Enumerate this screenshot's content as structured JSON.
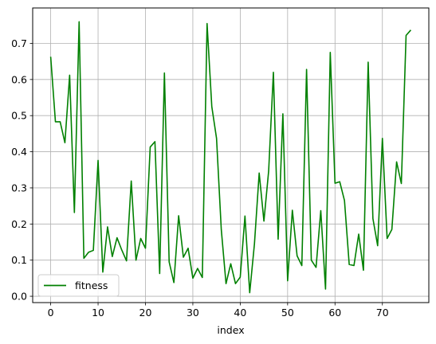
{
  "chart_data": {
    "type": "line",
    "xlabel": "index",
    "ylabel": "",
    "title": "",
    "xlim": [
      -3.8,
      79.8
    ],
    "ylim": [
      -0.0175,
      0.798
    ],
    "xticks": [
      0,
      10,
      20,
      30,
      40,
      50,
      60,
      70
    ],
    "yticks": [
      0.0,
      0.1,
      0.2,
      0.3,
      0.4,
      0.5,
      0.6,
      0.7
    ],
    "yticklabels": [
      "0.0",
      "0.1",
      "0.2",
      "0.3",
      "0.4",
      "0.5",
      "0.6",
      "0.7"
    ],
    "grid": true,
    "legend": {
      "placement": "lower-left"
    },
    "series": [
      {
        "name": "fitness",
        "color": "#008000",
        "x": [
          0,
          1,
          2,
          3,
          4,
          5,
          6,
          7,
          8,
          9,
          10,
          11,
          12,
          13,
          14,
          15,
          16,
          17,
          18,
          19,
          20,
          21,
          22,
          23,
          24,
          25,
          26,
          27,
          28,
          29,
          30,
          31,
          32,
          33,
          34,
          35,
          36,
          37,
          38,
          39,
          40,
          41,
          42,
          43,
          44,
          45,
          46,
          47,
          48,
          49,
          50,
          51,
          52,
          53,
          54,
          55,
          56,
          57,
          58,
          59,
          60,
          61,
          62,
          63,
          64,
          65,
          66,
          67,
          68,
          69,
          70,
          71,
          72,
          73,
          74,
          75,
          76
        ],
        "values": [
          0.663,
          0.483,
          0.483,
          0.425,
          0.612,
          0.232,
          0.76,
          0.105,
          0.122,
          0.127,
          0.376,
          0.067,
          0.192,
          0.11,
          0.162,
          0.128,
          0.098,
          0.319,
          0.1,
          0.16,
          0.133,
          0.413,
          0.428,
          0.063,
          0.618,
          0.095,
          0.038,
          0.223,
          0.108,
          0.133,
          0.05,
          0.077,
          0.052,
          0.755,
          0.525,
          0.437,
          0.185,
          0.035,
          0.09,
          0.035,
          0.053,
          0.222,
          0.01,
          0.145,
          0.341,
          0.208,
          0.347,
          0.62,
          0.158,
          0.505,
          0.043,
          0.238,
          0.112,
          0.085,
          0.628,
          0.1,
          0.08,
          0.237,
          0.02,
          0.675,
          0.313,
          0.317,
          0.265,
          0.088,
          0.085,
          0.172,
          0.072,
          0.648,
          0.215,
          0.14,
          0.437,
          0.16,
          0.185,
          0.372,
          0.312,
          0.722,
          0.737
        ]
      }
    ]
  }
}
